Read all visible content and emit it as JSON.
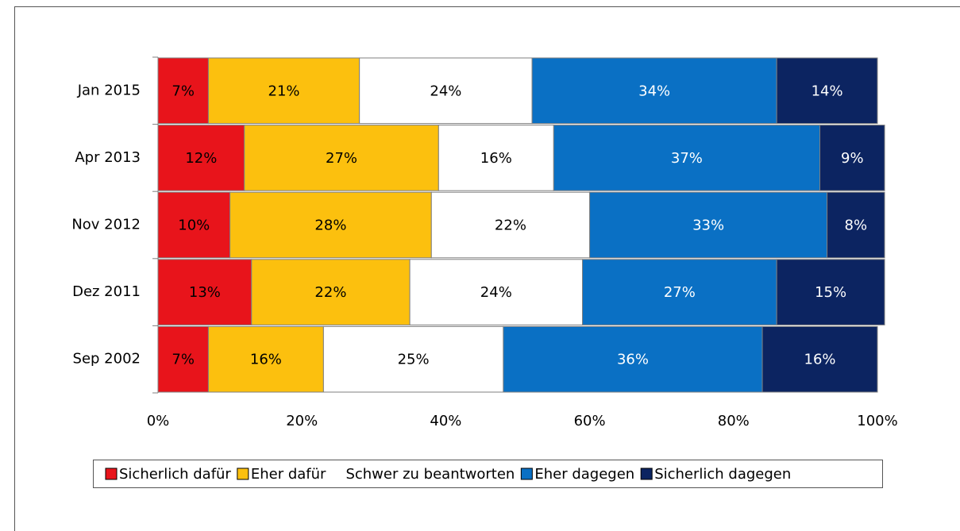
{
  "chart_data": {
    "type": "stacked_barh",
    "categories": [
      "Jan 2015",
      "Apr 2013",
      "Nov 2012",
      "Dez 2011",
      "Sep 2002"
    ],
    "series": [
      {
        "name": "Sicherlich dafür",
        "color": "#e8141b",
        "label_color": "#000000",
        "values": [
          7,
          12,
          10,
          13,
          7
        ],
        "value_labels": [
          "7%",
          "12%",
          "10%",
          "13%",
          "7%"
        ]
      },
      {
        "name": "Eher dafür",
        "color": "#fcc00e",
        "label_color": "#000000",
        "values": [
          21,
          27,
          28,
          22,
          16
        ],
        "value_labels": [
          "21%",
          "27%",
          "28%",
          "22%",
          "16%"
        ]
      },
      {
        "name": "Schwer zu beantworten",
        "color": "#ffffff",
        "label_color": "#000000",
        "values": [
          24,
          16,
          22,
          24,
          25
        ],
        "value_labels": [
          "24%",
          "16%",
          "22%",
          "24%",
          "25%"
        ]
      },
      {
        "name": "Eher dagegen",
        "color": "#0a70c4",
        "label_color": "#ffffff",
        "values": [
          34,
          37,
          33,
          27,
          36
        ],
        "value_labels": [
          "34%",
          "37%",
          "33%",
          "27%",
          "36%"
        ]
      },
      {
        "name": "Sicherlich dagegen",
        "color": "#0c2461",
        "label_color": "#ffffff",
        "values": [
          14,
          9,
          8,
          15,
          16
        ],
        "value_labels": [
          "14%",
          "9%",
          "8%",
          "15%",
          "16%"
        ]
      }
    ],
    "xlim": [
      0,
      100
    ],
    "xticks": [
      {
        "value": 0,
        "label": "0%"
      },
      {
        "value": 20,
        "label": "20%"
      },
      {
        "value": 40,
        "label": "40%"
      },
      {
        "value": 60,
        "label": "60%"
      },
      {
        "value": 80,
        "label": "80%"
      },
      {
        "value": 100,
        "label": "100%"
      }
    ],
    "grid": false,
    "legend": "bottom"
  }
}
